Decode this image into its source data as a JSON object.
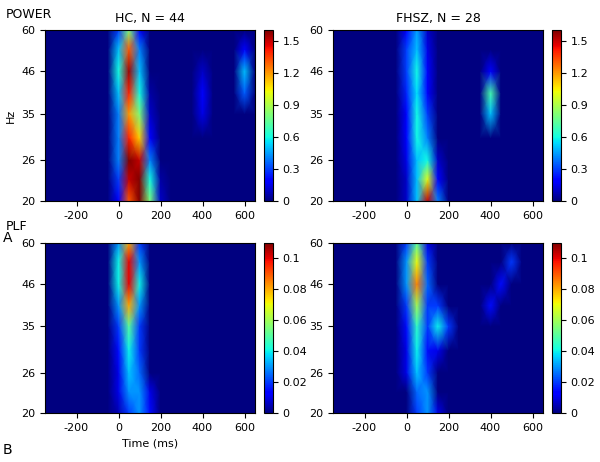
{
  "chart_data": [
    {
      "type": "heatmap",
      "title": "HC, N = 44",
      "annotations": [
        "POWER",
        "A"
      ],
      "ylabel": "Hz",
      "log": "y",
      "x": [
        -350,
        -300,
        -250,
        -200,
        -150,
        -100,
        -50,
        0,
        50,
        100,
        150,
        200,
        250,
        300,
        350,
        400,
        450,
        500,
        550,
        600,
        650
      ],
      "y": [
        20,
        23,
        26,
        30,
        35,
        40,
        46,
        53,
        60
      ],
      "xlim": [
        -350,
        650
      ],
      "ylim": [
        20,
        60
      ],
      "xticks": [
        -200,
        0,
        200,
        400,
        600
      ],
      "yticks": [
        20,
        26,
        35,
        46,
        60
      ],
      "colorbar_range": [
        0,
        1.6
      ],
      "colorbar_ticks": [
        0,
        0.3,
        0.6,
        0.9,
        1.2,
        1.5
      ],
      "cells": [
        [
          0,
          0,
          0,
          0,
          0,
          0,
          0,
          0.2,
          1.3,
          1.6,
          0.8,
          0.1,
          0,
          0,
          0,
          0,
          0,
          0,
          0,
          0,
          0
        ],
        [
          0,
          0,
          0,
          0,
          0,
          0,
          0,
          0.3,
          1.5,
          1.6,
          0.6,
          0.05,
          0,
          0,
          0,
          0,
          0,
          0,
          0,
          0,
          0
        ],
        [
          0,
          0,
          0,
          0,
          0,
          0,
          0,
          0.4,
          1.6,
          1.5,
          0.4,
          0,
          0,
          0,
          0,
          0,
          0,
          0,
          0,
          0,
          0
        ],
        [
          0,
          0,
          0,
          0,
          0,
          0,
          0,
          0.4,
          1.4,
          1.1,
          0.2,
          0,
          0,
          0,
          0,
          0,
          0,
          0,
          0,
          0,
          0
        ],
        [
          0,
          0,
          0,
          0,
          0,
          0,
          0,
          0.4,
          1.2,
          0.8,
          0.1,
          0,
          0,
          0,
          0,
          0.15,
          0,
          0,
          0,
          0,
          0
        ],
        [
          0,
          0,
          0,
          0,
          0,
          0,
          0,
          0.5,
          1.4,
          0.6,
          0.05,
          0,
          0,
          0,
          0,
          0.2,
          0,
          0,
          0,
          0.35,
          0
        ],
        [
          0,
          0,
          0,
          0,
          0,
          0,
          0,
          0.6,
          1.55,
          0.5,
          0,
          0,
          0,
          0,
          0,
          0.1,
          0,
          0,
          0,
          0.5,
          0
        ],
        [
          0,
          0,
          0,
          0,
          0,
          0,
          0,
          0.5,
          1.3,
          0.4,
          0,
          0,
          0,
          0,
          0,
          0,
          0,
          0,
          0,
          0.2,
          0
        ],
        [
          0,
          0,
          0,
          0,
          0,
          0,
          0,
          0.3,
          0.8,
          0.2,
          0,
          0,
          0,
          0,
          0,
          0,
          0,
          0,
          0,
          0,
          0
        ]
      ]
    },
    {
      "type": "heatmap",
      "title": "FHSZ, N = 28",
      "log": "y",
      "x": [
        -350,
        -300,
        -250,
        -200,
        -150,
        -100,
        -50,
        0,
        50,
        100,
        150,
        200,
        250,
        300,
        350,
        400,
        450,
        500,
        550,
        600,
        650
      ],
      "y": [
        20,
        23,
        26,
        30,
        35,
        40,
        46,
        53,
        60
      ],
      "xlim": [
        -350,
        650
      ],
      "ylim": [
        20,
        60
      ],
      "xticks": [
        -200,
        0,
        200,
        400,
        600
      ],
      "yticks": [
        20,
        26,
        35,
        46,
        60
      ],
      "colorbar_range": [
        0,
        1.6
      ],
      "colorbar_ticks": [
        0,
        0.3,
        0.6,
        0.9,
        1.2,
        1.5
      ],
      "cells": [
        [
          0,
          0,
          0,
          0,
          0,
          0,
          0,
          0.1,
          0.5,
          1.5,
          0.4,
          0,
          0,
          0,
          0,
          0,
          0,
          0,
          0,
          0,
          0
        ],
        [
          0,
          0,
          0,
          0,
          0,
          0,
          0,
          0.1,
          0.5,
          1.0,
          0.2,
          0,
          0,
          0,
          0,
          0,
          0,
          0,
          0,
          0,
          0
        ],
        [
          0,
          0,
          0,
          0,
          0,
          0,
          0,
          0.15,
          0.5,
          0.6,
          0.1,
          0,
          0,
          0,
          0,
          0,
          0,
          0,
          0,
          0,
          0
        ],
        [
          0,
          0,
          0,
          0,
          0,
          0,
          0,
          0.2,
          0.6,
          0.4,
          0,
          0,
          0,
          0,
          0,
          0,
          0,
          0,
          0,
          0,
          0
        ],
        [
          0,
          0,
          0,
          0,
          0,
          0,
          0,
          0.2,
          0.6,
          0.3,
          0,
          0,
          0,
          0,
          0,
          0.5,
          0,
          0,
          0,
          0,
          0
        ],
        [
          0,
          0,
          0,
          0,
          0,
          0,
          0,
          0.25,
          0.55,
          0.2,
          0,
          0,
          0,
          0,
          0,
          0.7,
          0,
          0,
          0,
          0,
          0
        ],
        [
          0,
          0,
          0,
          0,
          0,
          0,
          0,
          0.3,
          0.6,
          0.2,
          0,
          0,
          0,
          0,
          0,
          0.2,
          0,
          0,
          0,
          0,
          0
        ],
        [
          0,
          0,
          0,
          0,
          0,
          0,
          0,
          0.3,
          0.5,
          0.15,
          0,
          0,
          0,
          0,
          0,
          0,
          0,
          0,
          0,
          0,
          0
        ],
        [
          0,
          0,
          0,
          0,
          0,
          0,
          0,
          0.2,
          0.45,
          0.1,
          0,
          0,
          0,
          0,
          0,
          0,
          0,
          0,
          0,
          0,
          0
        ]
      ]
    },
    {
      "type": "heatmap",
      "annotations": [
        "PLF",
        "B"
      ],
      "xlabel": "Time (ms)",
      "log": "y",
      "x": [
        -350,
        -300,
        -250,
        -200,
        -150,
        -100,
        -50,
        0,
        50,
        100,
        150,
        200,
        250,
        300,
        350,
        400,
        450,
        500,
        550,
        600,
        650
      ],
      "y": [
        20,
        23,
        26,
        30,
        35,
        40,
        46,
        53,
        60
      ],
      "xlim": [
        -350,
        650
      ],
      "ylim": [
        20,
        60
      ],
      "xticks": [
        -200,
        0,
        200,
        400,
        600
      ],
      "yticks": [
        20,
        26,
        35,
        46,
        60
      ],
      "colorbar_range": [
        0,
        0.11
      ],
      "colorbar_ticks": [
        0,
        0.02,
        0.04,
        0.06,
        0.08,
        0.1
      ],
      "cells": [
        [
          0,
          0,
          0,
          0,
          0,
          0,
          0,
          0.005,
          0.02,
          0.03,
          0.015,
          0,
          0,
          0,
          0,
          0,
          0,
          0,
          0,
          0,
          0
        ],
        [
          0,
          0,
          0,
          0,
          0,
          0,
          0,
          0.01,
          0.03,
          0.03,
          0.01,
          0,
          0,
          0,
          0,
          0,
          0,
          0,
          0,
          0,
          0
        ],
        [
          0,
          0,
          0,
          0,
          0,
          0,
          0,
          0.01,
          0.035,
          0.025,
          0,
          0,
          0,
          0,
          0,
          0,
          0,
          0,
          0,
          0,
          0
        ],
        [
          0,
          0,
          0,
          0,
          0,
          0,
          0,
          0.015,
          0.04,
          0.02,
          0,
          0,
          0,
          0,
          0,
          0,
          0,
          0,
          0,
          0,
          0
        ],
        [
          0,
          0,
          0,
          0,
          0,
          0,
          0,
          0.02,
          0.05,
          0.02,
          0,
          0,
          0,
          0,
          0,
          0,
          0,
          0,
          0,
          0,
          0
        ],
        [
          0,
          0,
          0,
          0,
          0,
          0,
          0,
          0.03,
          0.08,
          0.03,
          0,
          0,
          0,
          0,
          0,
          0,
          0,
          0,
          0,
          0,
          0
        ],
        [
          0,
          0,
          0,
          0,
          0,
          0,
          0,
          0.04,
          0.1,
          0.04,
          0,
          0,
          0,
          0,
          0,
          0,
          0,
          0,
          0,
          0,
          0
        ],
        [
          0,
          0,
          0,
          0,
          0,
          0,
          0,
          0.04,
          0.1,
          0.03,
          0,
          0,
          0,
          0,
          0,
          0,
          0,
          0,
          0,
          0,
          0
        ],
        [
          0,
          0,
          0,
          0,
          0,
          0,
          0,
          0.03,
          0.08,
          0.02,
          0,
          0,
          0,
          0,
          0,
          0,
          0,
          0,
          0,
          0,
          0
        ]
      ]
    },
    {
      "type": "heatmap",
      "log": "y",
      "x": [
        -350,
        -300,
        -250,
        -200,
        -150,
        -100,
        -50,
        0,
        50,
        100,
        150,
        200,
        250,
        300,
        350,
        400,
        450,
        500,
        550,
        600,
        650
      ],
      "y": [
        20,
        23,
        26,
        30,
        35,
        40,
        46,
        53,
        60
      ],
      "xlim": [
        -350,
        650
      ],
      "ylim": [
        20,
        60
      ],
      "xticks": [
        -200,
        0,
        200,
        400,
        600
      ],
      "yticks": [
        20,
        26,
        35,
        46,
        60
      ],
      "colorbar_range": [
        0,
        0.11
      ],
      "colorbar_ticks": [
        0,
        0.02,
        0.04,
        0.06,
        0.08,
        0.1
      ],
      "cells": [
        [
          0,
          0,
          0,
          0,
          0,
          0,
          0,
          0,
          0.02,
          0.03,
          0.01,
          0,
          0,
          0,
          0,
          0,
          0,
          0,
          0,
          0,
          0
        ],
        [
          0,
          0,
          0,
          0,
          0,
          0,
          0,
          0,
          0.025,
          0.03,
          0,
          0,
          0,
          0,
          0,
          0,
          0,
          0,
          0,
          0,
          0
        ],
        [
          0,
          0,
          0,
          0,
          0,
          0,
          0,
          0.01,
          0.035,
          0.02,
          0,
          0,
          0,
          0,
          0,
          0,
          0,
          0,
          0,
          0,
          0
        ],
        [
          0,
          0,
          0,
          0,
          0,
          0,
          0,
          0.01,
          0.04,
          0.015,
          0.01,
          0,
          0,
          0,
          0,
          0,
          0,
          0,
          0,
          0,
          0
        ],
        [
          0,
          0,
          0,
          0,
          0,
          0,
          0,
          0.015,
          0.045,
          0.02,
          0.04,
          0.02,
          0,
          0,
          0,
          0,
          0,
          0,
          0,
          0,
          0
        ],
        [
          0,
          0,
          0,
          0,
          0,
          0,
          0,
          0.02,
          0.06,
          0.02,
          0.02,
          0,
          0,
          0,
          0,
          0.015,
          0,
          0,
          0,
          0,
          0
        ],
        [
          0,
          0,
          0,
          0,
          0,
          0,
          0,
          0.03,
          0.085,
          0.025,
          0,
          0,
          0,
          0,
          0,
          0,
          0.015,
          0,
          0,
          0,
          0
        ],
        [
          0,
          0,
          0,
          0,
          0,
          0,
          0,
          0.03,
          0.07,
          0.02,
          0,
          0,
          0,
          0,
          0,
          0,
          0,
          0.02,
          0,
          0,
          0
        ],
        [
          0,
          0,
          0,
          0,
          0,
          0,
          0,
          0.02,
          0.05,
          0.01,
          0,
          0,
          0,
          0,
          0,
          0,
          0,
          0,
          0,
          0,
          0
        ]
      ]
    }
  ]
}
